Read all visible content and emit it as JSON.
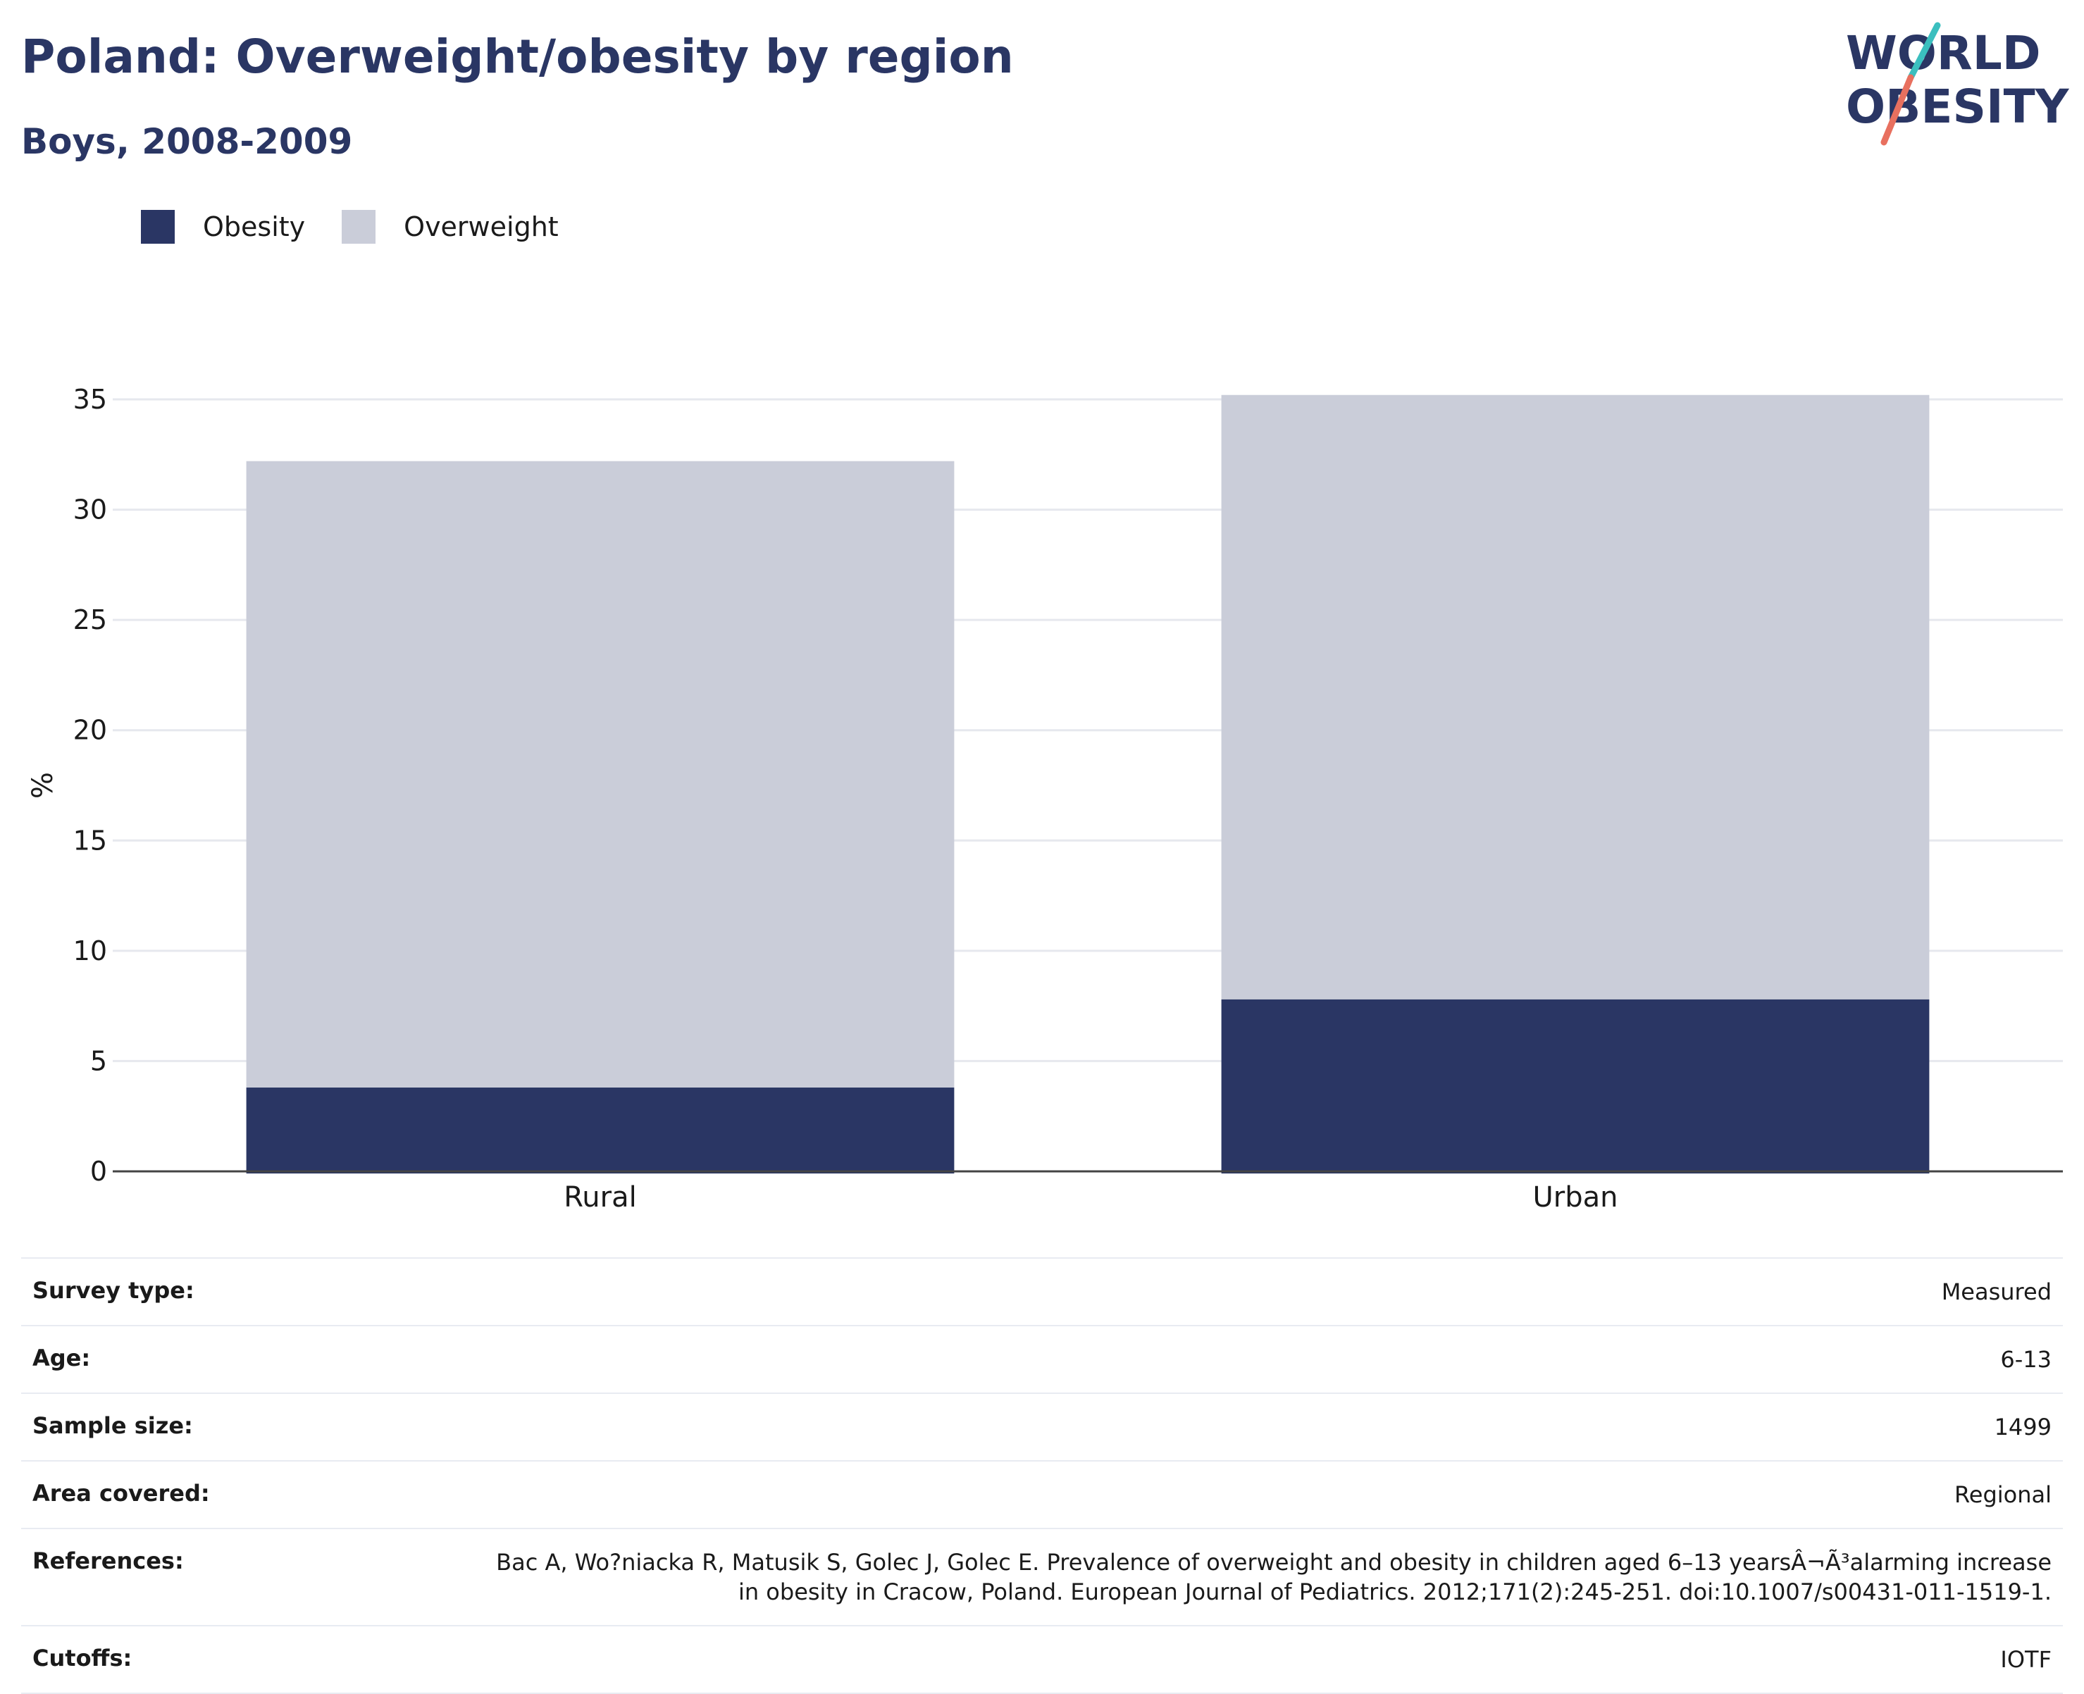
{
  "header": {
    "title": "Poland: Overweight/obesity by region",
    "subtitle": "Boys, 2008-2009"
  },
  "logo": {
    "line1": "WORLD",
    "line2": "OBESITY",
    "accent_teal": "#3bbfbf",
    "accent_coral": "#e8705f"
  },
  "colors": {
    "obesity": "#2a3664",
    "overweight": "#cacdd9",
    "grid": "#e6e8ee",
    "axis": "#444444"
  },
  "chart_data": {
    "type": "bar",
    "stacked": true,
    "categories": [
      "Rural",
      "Urban"
    ],
    "series": [
      {
        "name": "Obesity",
        "values": [
          3.8,
          7.8
        ]
      },
      {
        "name": "Overweight",
        "values": [
          28.4,
          27.4
        ]
      }
    ],
    "ylabel": "%",
    "ylim": [
      0,
      35
    ],
    "yticks": [
      "0",
      "5",
      "10",
      "15",
      "20",
      "25",
      "30",
      "35"
    ],
    "grid": true,
    "legend": "top-left"
  },
  "info": {
    "rows": [
      {
        "key": "Survey type:",
        "value": "Measured"
      },
      {
        "key": "Age:",
        "value": "6-13"
      },
      {
        "key": "Sample size:",
        "value": "1499"
      },
      {
        "key": "Area covered:",
        "value": "Regional"
      },
      {
        "key": "References:",
        "value": "Bac A, Wo?niacka R, Matusik S, Golec J, Golec E. Prevalence of overweight and obesity in children aged 6–13 yearsÂ¬Ã³alarming increase in obesity in Cracow, Poland. European Journal of Pediatrics. 2012;171(2):245-251. doi:10.1007/s00431-011-1519-1."
      },
      {
        "key": "Cutoffs:",
        "value": "IOTF"
      }
    ]
  }
}
